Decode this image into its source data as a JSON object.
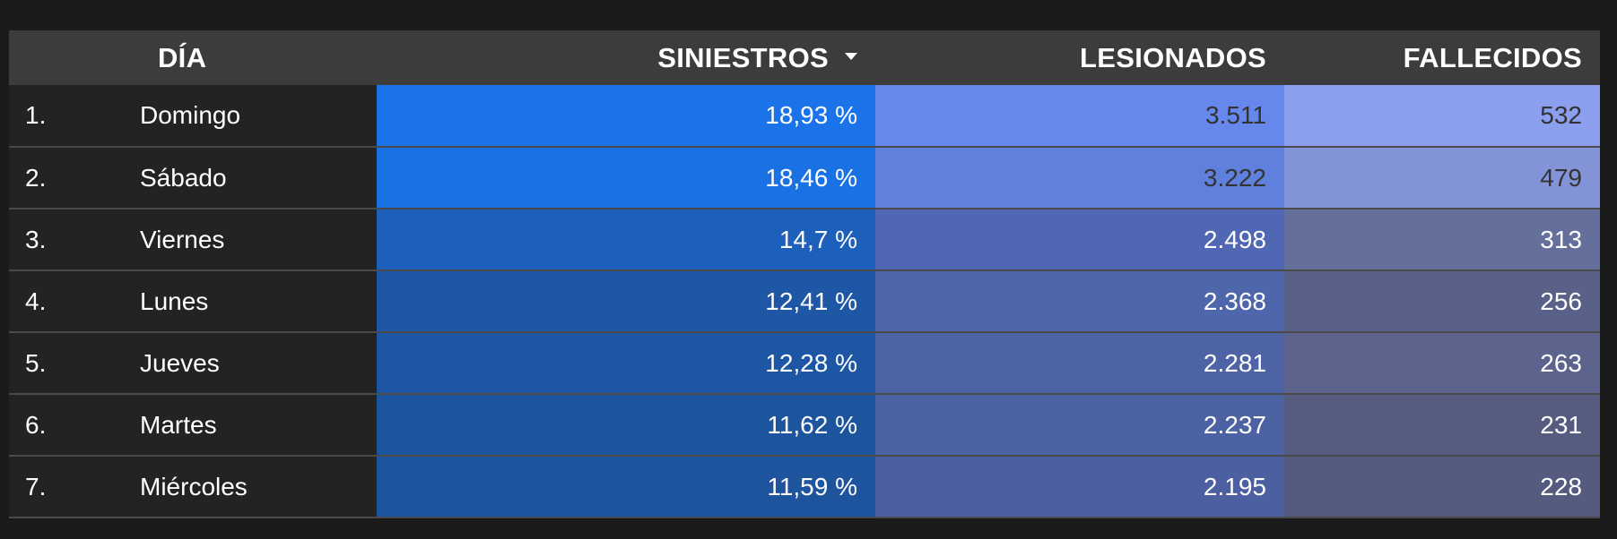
{
  "chart_data": {
    "type": "table",
    "columns": [
      "DÍA",
      "SINIESTROS",
      "LESIONADOS",
      "FALLECIDOS"
    ],
    "sort_column": "SINIESTROS",
    "sort_order": "descending",
    "rows": [
      {
        "idx": "1.",
        "dia": "Domingo",
        "siniestros": "18,93 %",
        "siniestros_value": 18.93,
        "lesionados": "3.511",
        "lesionados_value": 3511,
        "fallecidos": "532",
        "fallecidos_value": 532,
        "colors": {
          "siniestros": "#1a73e8",
          "lesionados": "#6688ec",
          "fallecidos": "#8c9fee"
        },
        "text_colors": {
          "siniestros": "#ffffff",
          "lesionados": "#333333",
          "fallecidos": "#333333"
        }
      },
      {
        "idx": "2.",
        "dia": "Sábado",
        "siniestros": "18,46 %",
        "siniestros_value": 18.46,
        "lesionados": "3.222",
        "lesionados_value": 3222,
        "fallecidos": "479",
        "fallecidos_value": 479,
        "colors": {
          "siniestros": "#1a71e3",
          "lesionados": "#5f80dc",
          "fallecidos": "#8393d8"
        },
        "text_colors": {
          "siniestros": "#ffffff",
          "lesionados": "#333333",
          "fallecidos": "#333333"
        }
      },
      {
        "idx": "3.",
        "dia": "Viernes",
        "siniestros": "14,7 %",
        "siniestros_value": 14.7,
        "lesionados": "2.498",
        "lesionados_value": 2498,
        "fallecidos": "313",
        "fallecidos_value": 313,
        "colors": {
          "siniestros": "#1c60bb",
          "lesionados": "#5068b4",
          "fallecidos": "#656f9c"
        },
        "text_colors": {
          "siniestros": "#ffffff",
          "lesionados": "#ffffff",
          "fallecidos": "#ffffff"
        }
      },
      {
        "idx": "4.",
        "dia": "Lunes",
        "siniestros": "12,41 %",
        "siniestros_value": 12.41,
        "lesionados": "2.368",
        "lesionados_value": 2368,
        "fallecidos": "256",
        "fallecidos_value": 256,
        "colors": {
          "siniestros": "#1d57a6",
          "lesionados": "#4e66ab",
          "fallecidos": "#5a6189"
        },
        "text_colors": {
          "siniestros": "#ffffff",
          "lesionados": "#ffffff",
          "fallecidos": "#ffffff"
        }
      },
      {
        "idx": "5.",
        "dia": "Jueves",
        "siniestros": "12,28 %",
        "siniestros_value": 12.28,
        "lesionados": "2.281",
        "lesionados_value": 2281,
        "fallecidos": "263",
        "fallecidos_value": 263,
        "colors": {
          "siniestros": "#1d56a4",
          "lesionados": "#4d63a6",
          "fallecidos": "#5c648e"
        },
        "text_colors": {
          "siniestros": "#ffffff",
          "lesionados": "#ffffff",
          "fallecidos": "#ffffff"
        }
      },
      {
        "idx": "6.",
        "dia": "Martes",
        "siniestros": "11,62 %",
        "siniestros_value": 11.62,
        "lesionados": "2.237",
        "lesionados_value": 2237,
        "fallecidos": "231",
        "fallecidos_value": 231,
        "colors": {
          "siniestros": "#1d549e",
          "lesionados": "#4c62a3",
          "fallecidos": "#565c80"
        },
        "text_colors": {
          "siniestros": "#ffffff",
          "lesionados": "#ffffff",
          "fallecidos": "#ffffff"
        }
      },
      {
        "idx": "7.",
        "dia": "Miércoles",
        "siniestros": "11,59 %",
        "siniestros_value": 11.59,
        "lesionados": "2.195",
        "lesionados_value": 2195,
        "fallecidos": "228",
        "fallecidos_value": 228,
        "colors": {
          "siniestros": "#1d549d",
          "lesionados": "#4c60a1",
          "fallecidos": "#555b7e"
        },
        "text_colors": {
          "siniestros": "#ffffff",
          "lesionados": "#ffffff",
          "fallecidos": "#ffffff"
        }
      }
    ]
  },
  "header": {
    "dia": "DÍA",
    "siniestros": "SINIESTROS",
    "lesionados": "LESIONADOS",
    "fallecidos": "FALLECIDOS",
    "sort_icon": "caret-down-icon"
  }
}
